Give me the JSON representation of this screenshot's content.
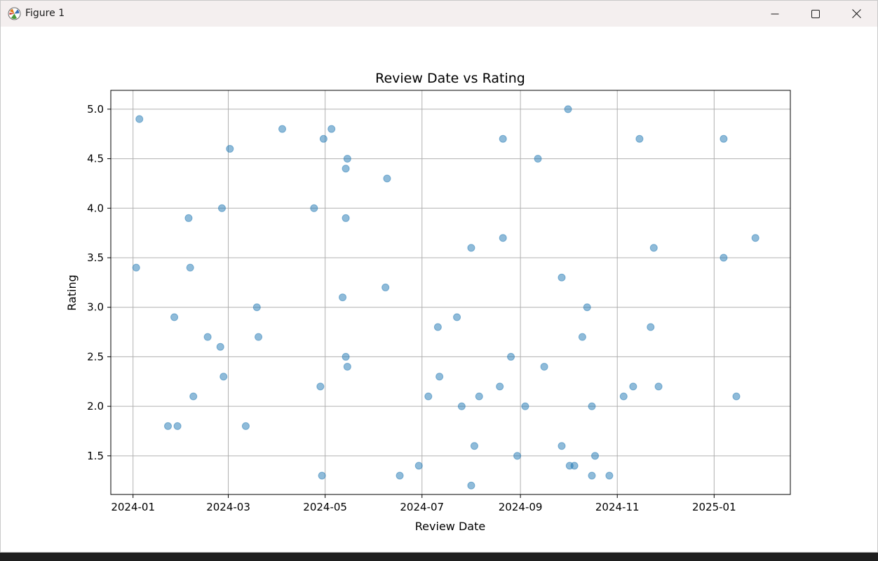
{
  "window": {
    "title": "Figure 1",
    "icons": {
      "app": "matplotlib-figure-icon",
      "minimize": "minimize-icon",
      "maximize": "maximize-icon",
      "close": "close-icon"
    }
  },
  "chart_data": {
    "type": "scatter",
    "title": "Review Date vs Rating",
    "xlabel": "Review Date",
    "ylabel": "Rating",
    "xlim": [
      "2023-12-18",
      "2025-02-18"
    ],
    "ylim": [
      1.11,
      5.19
    ],
    "x_ticks": [
      "2024-01",
      "2024-03",
      "2024-05",
      "2024-07",
      "2024-09",
      "2024-11",
      "2025-01"
    ],
    "y_ticks": [
      "1.5",
      "2.0",
      "2.5",
      "3.0",
      "3.5",
      "4.0",
      "4.5",
      "5.0"
    ],
    "grid": true,
    "marker_color": "#1f77b4",
    "points": [
      {
        "x": "2024-01-03",
        "y": 3.4
      },
      {
        "x": "2024-01-05",
        "y": 4.9
      },
      {
        "x": "2024-01-23",
        "y": 1.8
      },
      {
        "x": "2024-01-27",
        "y": 2.9
      },
      {
        "x": "2024-01-29",
        "y": 1.8
      },
      {
        "x": "2024-02-05",
        "y": 3.9
      },
      {
        "x": "2024-02-06",
        "y": 3.4
      },
      {
        "x": "2024-02-08",
        "y": 2.1
      },
      {
        "x": "2024-02-17",
        "y": 2.7
      },
      {
        "x": "2024-02-25",
        "y": 2.6
      },
      {
        "x": "2024-02-26",
        "y": 4.0
      },
      {
        "x": "2024-02-27",
        "y": 2.3
      },
      {
        "x": "2024-03-02",
        "y": 4.6
      },
      {
        "x": "2024-03-12",
        "y": 1.8
      },
      {
        "x": "2024-03-19",
        "y": 3.0
      },
      {
        "x": "2024-03-20",
        "y": 2.7
      },
      {
        "x": "2024-04-04",
        "y": 4.8
      },
      {
        "x": "2024-04-24",
        "y": 4.0
      },
      {
        "x": "2024-04-28",
        "y": 2.2
      },
      {
        "x": "2024-04-29",
        "y": 1.3
      },
      {
        "x": "2024-04-30",
        "y": 4.7
      },
      {
        "x": "2024-05-05",
        "y": 4.8
      },
      {
        "x": "2024-05-12",
        "y": 3.1
      },
      {
        "x": "2024-05-14",
        "y": 4.4
      },
      {
        "x": "2024-05-14",
        "y": 3.9
      },
      {
        "x": "2024-05-14",
        "y": 2.5
      },
      {
        "x": "2024-05-15",
        "y": 4.5
      },
      {
        "x": "2024-05-15",
        "y": 2.4
      },
      {
        "x": "2024-06-08",
        "y": 3.2
      },
      {
        "x": "2024-06-09",
        "y": 4.3
      },
      {
        "x": "2024-06-17",
        "y": 1.3
      },
      {
        "x": "2024-06-29",
        "y": 1.4
      },
      {
        "x": "2024-07-05",
        "y": 2.1
      },
      {
        "x": "2024-07-11",
        "y": 2.8
      },
      {
        "x": "2024-07-12",
        "y": 2.3
      },
      {
        "x": "2024-07-23",
        "y": 2.9
      },
      {
        "x": "2024-07-26",
        "y": 2.0
      },
      {
        "x": "2024-08-01",
        "y": 3.6
      },
      {
        "x": "2024-08-01",
        "y": 1.2
      },
      {
        "x": "2024-08-03",
        "y": 1.6
      },
      {
        "x": "2024-08-06",
        "y": 2.1
      },
      {
        "x": "2024-08-19",
        "y": 2.2
      },
      {
        "x": "2024-08-21",
        "y": 4.7
      },
      {
        "x": "2024-08-21",
        "y": 3.7
      },
      {
        "x": "2024-08-26",
        "y": 2.5
      },
      {
        "x": "2024-08-30",
        "y": 1.5
      },
      {
        "x": "2024-09-04",
        "y": 2.0
      },
      {
        "x": "2024-09-12",
        "y": 4.5
      },
      {
        "x": "2024-09-16",
        "y": 2.4
      },
      {
        "x": "2024-09-27",
        "y": 3.3
      },
      {
        "x": "2024-09-27",
        "y": 1.6
      },
      {
        "x": "2024-10-01",
        "y": 5.0
      },
      {
        "x": "2024-10-02",
        "y": 1.4
      },
      {
        "x": "2024-10-05",
        "y": 1.4
      },
      {
        "x": "2024-10-10",
        "y": 2.7
      },
      {
        "x": "2024-10-13",
        "y": 3.0
      },
      {
        "x": "2024-10-16",
        "y": 2.0
      },
      {
        "x": "2024-10-16",
        "y": 1.3
      },
      {
        "x": "2024-10-18",
        "y": 1.5
      },
      {
        "x": "2024-10-27",
        "y": 1.3
      },
      {
        "x": "2024-11-05",
        "y": 2.1
      },
      {
        "x": "2024-11-11",
        "y": 2.2
      },
      {
        "x": "2024-11-15",
        "y": 4.7
      },
      {
        "x": "2024-11-22",
        "y": 2.8
      },
      {
        "x": "2024-11-24",
        "y": 3.6
      },
      {
        "x": "2024-11-27",
        "y": 2.2
      },
      {
        "x": "2025-01-07",
        "y": 4.7
      },
      {
        "x": "2025-01-07",
        "y": 3.5
      },
      {
        "x": "2025-01-15",
        "y": 2.1
      },
      {
        "x": "2025-01-27",
        "y": 3.7
      }
    ]
  }
}
